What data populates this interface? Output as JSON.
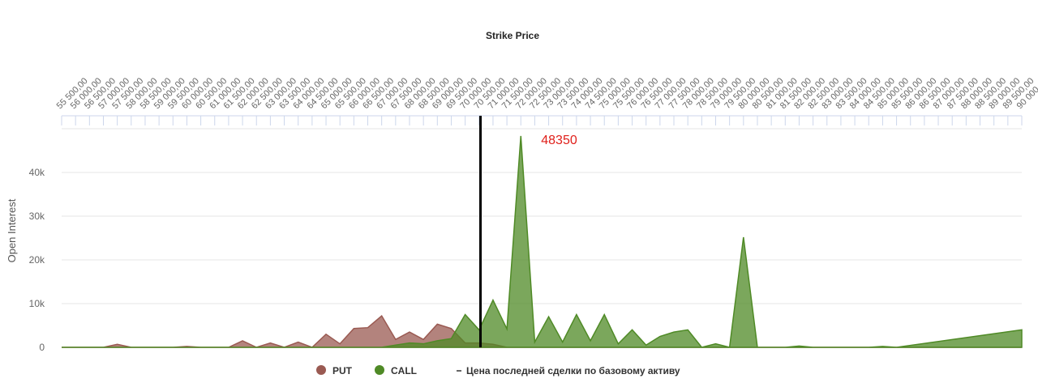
{
  "chart_data": {
    "type": "area",
    "x_axis_title": "Strike Price",
    "y_axis_title": "Open Interest",
    "series": [
      {
        "name": "PUT",
        "color": "#9a5a52",
        "x": [
          55500,
          56000,
          56500,
          57000,
          57500,
          58000,
          58500,
          59000,
          59500,
          60000,
          60500,
          61000,
          61500,
          62000,
          62500,
          63000,
          63500,
          64000,
          64500,
          65000,
          65500,
          66000,
          66500,
          67000,
          67500,
          68000,
          68500,
          69000,
          69500,
          70000,
          70500,
          71000,
          71500,
          72000,
          72500,
          73000,
          73500,
          74000,
          74500,
          75000,
          75500,
          76000,
          76500,
          77000,
          77500,
          78000,
          78500,
          79000,
          79500,
          80000,
          80500,
          81000,
          81500,
          82000,
          82500,
          83000,
          83500,
          84000,
          84500,
          85000,
          85500,
          86000,
          86500,
          87000,
          87500,
          88000,
          88500,
          89000,
          89500,
          90000
        ],
        "values": [
          0,
          0,
          0,
          0,
          700,
          0,
          0,
          0,
          0,
          200,
          0,
          0,
          0,
          1500,
          0,
          1000,
          0,
          1200,
          0,
          3000,
          800,
          4300,
          4500,
          7200,
          1800,
          3500,
          1800,
          5300,
          4300,
          1000,
          1000,
          700,
          0,
          0,
          0,
          0,
          0,
          0,
          0,
          0,
          0,
          0,
          0,
          0,
          0,
          0,
          0,
          0,
          0,
          0,
          0,
          0,
          0,
          0,
          0,
          0,
          0,
          0,
          0,
          0,
          0,
          0,
          0,
          0,
          0,
          0,
          0,
          0,
          0,
          0
        ]
      },
      {
        "name": "CALL",
        "color": "#4f8a26",
        "x": [
          55500,
          56000,
          56500,
          57000,
          57500,
          58000,
          58500,
          59000,
          59500,
          60000,
          60500,
          61000,
          61500,
          62000,
          62500,
          63000,
          63500,
          64000,
          64500,
          65000,
          65500,
          66000,
          66500,
          67000,
          67500,
          68000,
          68500,
          69000,
          69500,
          70000,
          70500,
          71000,
          71500,
          72000,
          72500,
          73000,
          73500,
          74000,
          74500,
          75000,
          75500,
          76000,
          76500,
          77000,
          77500,
          78000,
          78500,
          79000,
          79500,
          80000,
          80500,
          81000,
          81500,
          82000,
          82500,
          83000,
          83500,
          84000,
          84500,
          85000,
          85500,
          90000
        ],
        "values": [
          0,
          0,
          0,
          0,
          0,
          0,
          0,
          0,
          0,
          0,
          0,
          0,
          0,
          0,
          0,
          0,
          0,
          0,
          0,
          0,
          0,
          0,
          0,
          0,
          500,
          1000,
          800,
          1500,
          2000,
          7500,
          4000,
          10800,
          4200,
          48350,
          1200,
          7000,
          1200,
          7500,
          1500,
          7500,
          800,
          4000,
          500,
          2500,
          3500,
          4000,
          0,
          800,
          0,
          25200,
          0,
          0,
          0,
          300,
          0,
          0,
          0,
          0,
          0,
          200,
          0,
          4000
        ]
      }
    ],
    "annotation_point": "chart_data.series.1.values.33",
    "reference_line": {
      "name": "Цена последней сделки по базовому активу",
      "value": 70550,
      "color": "#000000"
    },
    "xlim": [
      55500,
      90000
    ],
    "xticks": [
      {
        "value": 55500,
        "label": "55 500,00"
      },
      {
        "value": 56000,
        "label": "56 000,00"
      },
      {
        "value": 56500,
        "label": "56 500,00"
      },
      {
        "value": 57000,
        "label": "57 000,00"
      },
      {
        "value": 57500,
        "label": "57 500,00"
      },
      {
        "value": 58000,
        "label": "58 000,00"
      },
      {
        "value": 58500,
        "label": "58 500,00"
      },
      {
        "value": 59000,
        "label": "59 000,00"
      },
      {
        "value": 59500,
        "label": "59 500,00"
      },
      {
        "value": 60000,
        "label": "60 000,00"
      },
      {
        "value": 60500,
        "label": "60 500,00"
      },
      {
        "value": 61000,
        "label": "61 000,00"
      },
      {
        "value": 61500,
        "label": "61 500,00"
      },
      {
        "value": 62000,
        "label": "62 000,00"
      },
      {
        "value": 62500,
        "label": "62 500,00"
      },
      {
        "value": 63000,
        "label": "63 000,00"
      },
      {
        "value": 63500,
        "label": "63 500,00"
      },
      {
        "value": 64000,
        "label": "64 000,00"
      },
      {
        "value": 64500,
        "label": "64 500,00"
      },
      {
        "value": 65000,
        "label": "65 000,00"
      },
      {
        "value": 65500,
        "label": "65 500,00"
      },
      {
        "value": 66000,
        "label": "66 000,00"
      },
      {
        "value": 66500,
        "label": "66 500,00"
      },
      {
        "value": 67000,
        "label": "67 000,00"
      },
      {
        "value": 67500,
        "label": "67 500,00"
      },
      {
        "value": 68000,
        "label": "68 000,00"
      },
      {
        "value": 68500,
        "label": "68 500,00"
      },
      {
        "value": 69000,
        "label": "69 000,00"
      },
      {
        "value": 69500,
        "label": "69 500,00"
      },
      {
        "value": 70000,
        "label": "70 000,00"
      },
      {
        "value": 70500,
        "label": "70 500,00"
      },
      {
        "value": 71000,
        "label": "71 000,00"
      },
      {
        "value": 71500,
        "label": "71 500,00"
      },
      {
        "value": 72000,
        "label": "72 000,00"
      },
      {
        "value": 72500,
        "label": "72 500,00"
      },
      {
        "value": 73000,
        "label": "73 000,00"
      },
      {
        "value": 73500,
        "label": "73 500,00"
      },
      {
        "value": 74000,
        "label": "74 000,00"
      },
      {
        "value": 74500,
        "label": "74 500,00"
      },
      {
        "value": 75000,
        "label": "75 000,00"
      },
      {
        "value": 75500,
        "label": "75 500,00"
      },
      {
        "value": 76000,
        "label": "76 000,00"
      },
      {
        "value": 76500,
        "label": "76 500,00"
      },
      {
        "value": 77000,
        "label": "77 000,00"
      },
      {
        "value": 77500,
        "label": "77 500,00"
      },
      {
        "value": 78000,
        "label": "78 000,00"
      },
      {
        "value": 78500,
        "label": "78 500,00"
      },
      {
        "value": 79000,
        "label": "79 000,00"
      },
      {
        "value": 79500,
        "label": "79 500,00"
      },
      {
        "value": 80000,
        "label": "80 000,00"
      },
      {
        "value": 80500,
        "label": "80 500,00"
      },
      {
        "value": 81000,
        "label": "81 000,00"
      },
      {
        "value": 81500,
        "label": "81 500,00"
      },
      {
        "value": 82000,
        "label": "82 000,00"
      },
      {
        "value": 82500,
        "label": "82 500,00"
      },
      {
        "value": 83000,
        "label": "83 000,00"
      },
      {
        "value": 83500,
        "label": "83 500,00"
      },
      {
        "value": 84000,
        "label": "84 000,00"
      },
      {
        "value": 84500,
        "label": "84 500,00"
      },
      {
        "value": 85000,
        "label": "85 000,00"
      },
      {
        "value": 85500,
        "label": "85 500,00"
      },
      {
        "value": 86000,
        "label": "86 000,00"
      },
      {
        "value": 86500,
        "label": "86 500,00"
      },
      {
        "value": 87000,
        "label": "87 000,00"
      },
      {
        "value": 87500,
        "label": "87 500,00"
      },
      {
        "value": 88000,
        "label": "88 000,00"
      },
      {
        "value": 88500,
        "label": "88 500,00"
      },
      {
        "value": 89000,
        "label": "89 000,00"
      },
      {
        "value": 89500,
        "label": "89 500,00"
      },
      {
        "value": 90000,
        "label": "90 000,00"
      }
    ],
    "ylim": [
      0,
      50000
    ],
    "yticks": [
      0,
      {
        "value": 10000,
        "label": "10k"
      },
      {
        "value": 20000,
        "label": "20k"
      },
      {
        "value": 30000,
        "label": "30k"
      },
      {
        "value": 40000,
        "label": "40k"
      }
    ],
    "grid": true
  }
}
